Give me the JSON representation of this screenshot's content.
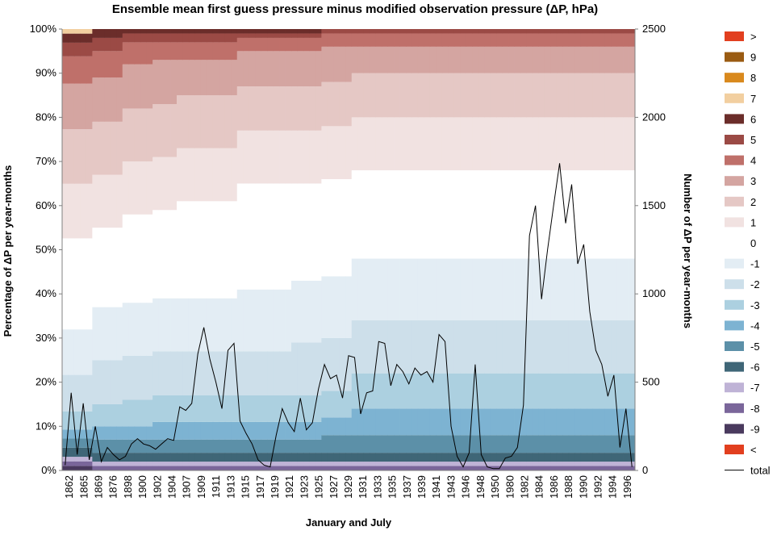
{
  "chart_data": {
    "type": "bar",
    "stacked": true,
    "title": "Ensemble mean first guess pressure minus modified observation pressure (ΔP, hPa)",
    "xlabel": "January and July",
    "ylabel": "Percentage of ΔP per year-months",
    "y2label": "Number of ΔP per year-months",
    "ylim": [
      0,
      100
    ],
    "y2lim": [
      0,
      2500
    ],
    "y_ticks": [
      "0%",
      "10%",
      "20%",
      "30%",
      "40%",
      "50%",
      "60%",
      "70%",
      "80%",
      "90%",
      "100%"
    ],
    "y2_ticks": [
      "0",
      "500",
      "1000",
      "1500",
      "2000",
      "2500"
    ],
    "x_tick_labels": [
      "1862",
      "1865",
      "1869",
      "1876",
      "1898",
      "1900",
      "1902",
      "1904",
      "1907",
      "1909",
      "1911",
      "1913",
      "1915",
      "1917",
      "1919",
      "1921",
      "1923",
      "1925",
      "1927",
      "1929",
      "1931",
      "1933",
      "1935",
      "1937",
      "1939",
      "1941",
      "1943",
      "1946",
      "1948",
      "1950",
      "1980",
      "1982",
      "1984",
      "1986",
      "1988",
      "1990",
      "1992",
      "1994",
      "1996"
    ],
    "grid": false,
    "legend_position": "right",
    "categories_note": "",
    "legend": [
      {
        "label": ">",
        "color": "#e23f1f"
      },
      {
        "label": "9",
        "color": "#9a5b12"
      },
      {
        "label": "8",
        "color": "#d9891d"
      },
      {
        "label": "7",
        "color": "#f2cfa0"
      },
      {
        "label": "6",
        "color": "#6b2d2a"
      },
      {
        "label": "5",
        "color": "#9b4a45"
      },
      {
        "label": "4",
        "color": "#bf706a"
      },
      {
        "label": "3",
        "color": "#d4a5a1"
      },
      {
        "label": "2",
        "color": "#e5c8c5"
      },
      {
        "label": "1",
        "color": "#f1e2e1"
      },
      {
        "label": "0",
        "color": "#ffffff"
      },
      {
        "label": "-1",
        "color": "#e3edf4"
      },
      {
        "label": "-2",
        "color": "#cddfea"
      },
      {
        "label": "-3",
        "color": "#acd0e0"
      },
      {
        "label": "-4",
        "color": "#7db3d2"
      },
      {
        "label": "-5",
        "color": "#5c90a8"
      },
      {
        "label": "-6",
        "color": "#3f6677"
      },
      {
        "label": "-7",
        "color": "#bfb3d6"
      },
      {
        "label": "-8",
        "color": "#7a669a"
      },
      {
        "label": "-9",
        "color": "#4a3a5e"
      },
      {
        "label": "<",
        "color": "#e23f1f"
      },
      {
        "label": "total",
        "color": "#000000"
      }
    ],
    "bars": [
      {
        "lt": 0,
        "n9": 1,
        "n8": 1,
        "n7": 1,
        "n6": 2,
        "n5": 2,
        "n4": 2,
        "n3": 4,
        "n2": 8,
        "n1": 10,
        "z": 20,
        "p1": 12,
        "p2": 12,
        "p3": 10,
        "p4": 6,
        "p5": 3,
        "p6": 2,
        "p7": 1,
        "p8": 0,
        "p9": 0,
        "gt": 0
      },
      {
        "lt": 0,
        "n9": 0,
        "n8": 1,
        "n7": 1,
        "n6": 2,
        "n5": 3,
        "n4": 3,
        "n3": 5,
        "n2": 10,
        "n1": 12,
        "z": 18,
        "p1": 12,
        "p2": 12,
        "p3": 10,
        "p4": 6,
        "p5": 3,
        "p6": 2,
        "p7": 0,
        "p8": 0,
        "p9": 0,
        "gt": 0
      },
      {
        "lt": 0,
        "n9": 0,
        "n8": 1,
        "n7": 1,
        "n6": 2,
        "n5": 3,
        "n4": 3,
        "n3": 6,
        "n2": 10,
        "n1": 12,
        "z": 20,
        "p1": 12,
        "p2": 12,
        "p3": 10,
        "p4": 5,
        "p5": 2,
        "p6": 1,
        "p7": 0,
        "p8": 0,
        "p9": 0,
        "gt": 0
      },
      {
        "lt": 0,
        "n9": 0,
        "n8": 1,
        "n7": 1,
        "n6": 2,
        "n5": 3,
        "n4": 4,
        "n3": 6,
        "n2": 10,
        "n1": 12,
        "z": 20,
        "p1": 12,
        "p2": 12,
        "p3": 10,
        "p4": 4,
        "p5": 2,
        "p6": 1,
        "p7": 0,
        "p8": 0,
        "p9": 0,
        "gt": 0
      },
      {
        "lt": 0,
        "n9": 0,
        "n8": 1,
        "n7": 1,
        "n6": 2,
        "n5": 3,
        "n4": 4,
        "n3": 6,
        "n2": 10,
        "n1": 12,
        "z": 22,
        "p1": 12,
        "p2": 12,
        "p3": 8,
        "p4": 4,
        "p5": 2,
        "p6": 1,
        "p7": 0,
        "p8": 0,
        "p9": 0,
        "gt": 0
      },
      {
        "lt": 0,
        "n9": 0,
        "n8": 1,
        "n7": 1,
        "n6": 2,
        "n5": 3,
        "n4": 4,
        "n3": 6,
        "n2": 10,
        "n1": 12,
        "z": 22,
        "p1": 12,
        "p2": 12,
        "p3": 8,
        "p4": 4,
        "p5": 2,
        "p6": 1,
        "p7": 0,
        "p8": 0,
        "p9": 0,
        "gt": 0
      },
      {
        "lt": 0,
        "n9": 0,
        "n8": 1,
        "n7": 1,
        "n6": 2,
        "n5": 3,
        "n4": 4,
        "n3": 6,
        "n2": 10,
        "n1": 14,
        "z": 24,
        "p1": 12,
        "p2": 10,
        "p3": 8,
        "p4": 3,
        "p5": 1,
        "p6": 1,
        "p7": 0,
        "p8": 0,
        "p9": 0,
        "gt": 0
      },
      {
        "lt": 0,
        "n9": 0,
        "n8": 1,
        "n7": 1,
        "n6": 2,
        "n5": 3,
        "n4": 4,
        "n3": 6,
        "n2": 10,
        "n1": 14,
        "z": 24,
        "p1": 12,
        "p2": 10,
        "p3": 8,
        "p4": 3,
        "p5": 1,
        "p6": 1,
        "p7": 0,
        "p8": 0,
        "p9": 0,
        "gt": 0
      },
      {
        "lt": 0,
        "n9": 0,
        "n8": 1,
        "n7": 1,
        "n6": 2,
        "n5": 3,
        "n4": 4,
        "n3": 6,
        "n2": 12,
        "n1": 14,
        "z": 22,
        "p1": 12,
        "p2": 10,
        "p3": 8,
        "p4": 3,
        "p5": 1,
        "p6": 1,
        "p7": 0,
        "p8": 0,
        "p9": 0,
        "gt": 0
      },
      {
        "lt": 0,
        "n9": 0,
        "n8": 1,
        "n7": 1,
        "n6": 2,
        "n5": 4,
        "n4": 4,
        "n3": 6,
        "n2": 12,
        "n1": 14,
        "z": 22,
        "p1": 12,
        "p2": 10,
        "p3": 8,
        "p4": 3,
        "p5": 1,
        "p6": 0,
        "p7": 0,
        "p8": 0,
        "p9": 0,
        "gt": 0
      },
      {
        "lt": 0,
        "n9": 0,
        "n8": 1,
        "n7": 1,
        "n6": 2,
        "n5": 4,
        "n4": 6,
        "n3": 8,
        "n2": 12,
        "n1": 14,
        "z": 20,
        "p1": 12,
        "p2": 10,
        "p3": 6,
        "p4": 3,
        "p5": 1,
        "p6": 0,
        "p7": 0,
        "p8": 0,
        "p9": 0,
        "gt": 0
      },
      {
        "lt": 0,
        "n9": 0,
        "n8": 1,
        "n7": 1,
        "n6": 2,
        "n5": 4,
        "n4": 6,
        "n3": 8,
        "n2": 12,
        "n1": 14,
        "z": 20,
        "p1": 12,
        "p2": 10,
        "p3": 6,
        "p4": 3,
        "p5": 1,
        "p6": 0,
        "p7": 0,
        "p8": 0,
        "p9": 0,
        "gt": 0
      },
      {
        "lt": 0,
        "n9": 0,
        "n8": 1,
        "n7": 1,
        "n6": 2,
        "n5": 4,
        "n4": 6,
        "n3": 8,
        "n2": 12,
        "n1": 14,
        "z": 20,
        "p1": 12,
        "p2": 10,
        "p3": 6,
        "p4": 3,
        "p5": 1,
        "p6": 0,
        "p7": 0,
        "p8": 0,
        "p9": 0,
        "gt": 0
      },
      {
        "lt": 0,
        "n9": 0,
        "n8": 1,
        "n7": 1,
        "n6": 2,
        "n5": 4,
        "n4": 6,
        "n3": 8,
        "n2": 12,
        "n1": 14,
        "z": 20,
        "p1": 12,
        "p2": 10,
        "p3": 6,
        "p4": 3,
        "p5": 1,
        "p6": 0,
        "p7": 0,
        "p8": 0,
        "p9": 0,
        "gt": 0
      },
      {
        "lt": 0,
        "n9": 0,
        "n8": 1,
        "n7": 1,
        "n6": 2,
        "n5": 4,
        "n4": 6,
        "n3": 8,
        "n2": 12,
        "n1": 14,
        "z": 20,
        "p1": 12,
        "p2": 10,
        "p3": 6,
        "p4": 3,
        "p5": 1,
        "p6": 0,
        "p7": 0,
        "p8": 0,
        "p9": 0,
        "gt": 0
      },
      {
        "lt": 0,
        "n9": 0,
        "n8": 1,
        "n7": 1,
        "n6": 2,
        "n5": 4,
        "n4": 6,
        "n3": 8,
        "n2": 12,
        "n1": 14,
        "z": 20,
        "p1": 12,
        "p2": 10,
        "p3": 6,
        "p4": 3,
        "p5": 1,
        "p6": 0,
        "p7": 0,
        "p8": 0,
        "p9": 0,
        "gt": 0
      },
      {
        "lt": 0,
        "n9": 0,
        "n8": 1,
        "n7": 1,
        "n6": 2,
        "n5": 4,
        "n4": 6,
        "n3": 8,
        "n2": 12,
        "n1": 14,
        "z": 20,
        "p1": 12,
        "p2": 10,
        "p3": 6,
        "p4": 3,
        "p5": 1,
        "p6": 0,
        "p7": 0,
        "p8": 0,
        "p9": 0,
        "gt": 0
      },
      {
        "lt": 0,
        "n9": 0,
        "n8": 1,
        "n7": 1,
        "n6": 2,
        "n5": 4,
        "n4": 6,
        "n3": 8,
        "n2": 12,
        "n1": 14,
        "z": 20,
        "p1": 12,
        "p2": 10,
        "p3": 6,
        "p4": 3,
        "p5": 1,
        "p6": 0,
        "p7": 0,
        "p8": 0,
        "p9": 0,
        "gt": 0
      },
      {
        "lt": 0,
        "n9": 0,
        "n8": 1,
        "n7": 1,
        "n6": 2,
        "n5": 4,
        "n4": 6,
        "n3": 8,
        "n2": 12,
        "n1": 14,
        "z": 20,
        "p1": 12,
        "p2": 10,
        "p3": 6,
        "p4": 3,
        "p5": 1,
        "p6": 0,
        "p7": 0,
        "p8": 0,
        "p9": 0,
        "gt": 0
      },
      {
        "lt": 0,
        "n9": 0,
        "n8": 1,
        "n7": 1,
        "n6": 2,
        "n5": 4,
        "n4": 6,
        "n3": 8,
        "n2": 12,
        "n1": 14,
        "z": 20,
        "p1": 12,
        "p2": 10,
        "p3": 6,
        "p4": 3,
        "p5": 1,
        "p6": 0,
        "p7": 0,
        "p8": 0,
        "p9": 0,
        "gt": 0
      }
    ],
    "total_line": [
      30,
      440,
      90,
      380,
      60,
      250,
      50,
      130,
      90,
      60,
      80,
      150,
      180,
      150,
      140,
      120,
      150,
      180,
      170,
      360,
      340,
      380,
      660,
      810,
      630,
      500,
      350,
      680,
      720,
      280,
      210,
      150,
      60,
      30,
      20,
      200,
      350,
      270,
      220,
      410,
      230,
      270,
      460,
      600,
      520,
      540,
      410,
      650,
      640,
      320,
      440,
      450,
      730,
      720,
      480,
      600,
      560,
      490,
      580,
      540,
      560,
      500,
      770,
      730,
      250,
      80,
      20,
      100,
      600,
      90,
      20,
      10,
      10,
      70,
      80,
      130,
      370,
      1330,
      1500,
      970,
      1250,
      1500,
      1740,
      1400,
      1620,
      1170,
      1280,
      900,
      680,
      600,
      420,
      540,
      130,
      350,
      20
    ]
  }
}
